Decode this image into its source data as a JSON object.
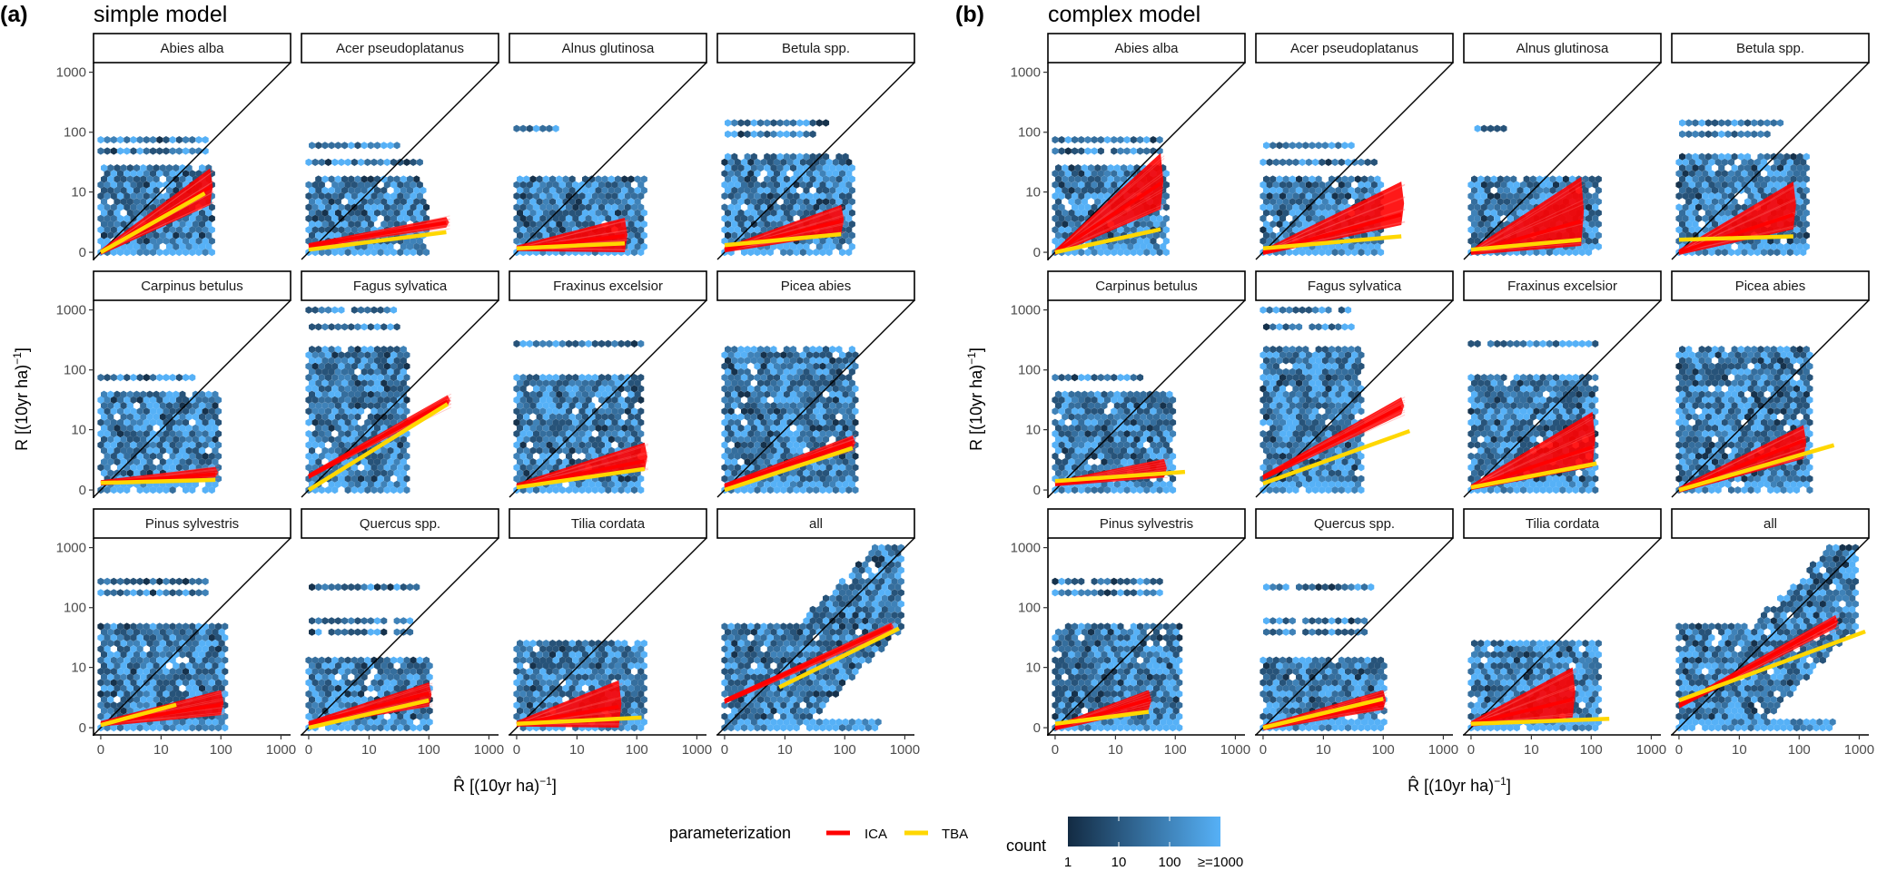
{
  "panels": {
    "a": {
      "tag": "(a)",
      "title": "simple model"
    },
    "b": {
      "tag": "(b)",
      "title": "complex model"
    }
  },
  "axes": {
    "ylabel": {
      "main": "R [(10yr ha)",
      "sup": "−1",
      "end": "]"
    },
    "xlabel": {
      "main": "R̂ [(10yr ha)",
      "sup": "−1",
      "end": "]"
    },
    "ticks": [
      "0",
      "10",
      "100",
      "1000"
    ],
    "tick_values": [
      0,
      10,
      100,
      1000
    ],
    "scale": "pseudo-log",
    "range": [
      0,
      1400
    ]
  },
  "legend": {
    "title": "parameterization",
    "items": [
      {
        "label": "ICA",
        "color": "#FF0000"
      },
      {
        "label": "TBA",
        "color": "#FFD700"
      }
    ],
    "count": {
      "title": "count",
      "labels": [
        "1",
        "10",
        "100",
        "≥=1000"
      ],
      "low_color": "#132B43",
      "high_color": "#56B1F7"
    }
  },
  "colors": {
    "ica": "#FF0000",
    "tba": "#FFD700",
    "identity": "#000000"
  },
  "chart_data": [
    {
      "type": "hexbin+line",
      "title": "simple model",
      "panels": [
        {
          "species": "Abies alba",
          "hex": {
            "xmax": 74,
            "ymax": 30,
            "rows": [
              [
                50,
                60
              ],
              [
                80,
                70
              ]
            ]
          },
          "ica": {
            "from": [
              0,
              0
            ],
            "to": [
              66,
              12
            ],
            "to_range": [
              6,
              25
            ]
          },
          "tba": {
            "from": [
              0,
              0
            ],
            "to": [
              54,
              9.5
            ]
          }
        },
        {
          "species": "Acer pseudoplatanus",
          "hex": {
            "xmax": 91,
            "ymax": 20,
            "rows": [
              [
                30,
                80
              ],
              [
                55,
                30
              ]
            ]
          },
          "ica": {
            "from": [
              0,
              0.5
            ],
            "to": [
              195,
              2.8
            ],
            "to_range": [
              2.2,
              3.6
            ]
          },
          "tba": {
            "from": [
              0,
              0.2
            ],
            "to": [
              195,
              1.7
            ]
          }
        },
        {
          "species": "Alnus glutinosa",
          "hex": {
            "xmax": 135,
            "ymax": 20,
            "rows": [
              [
                120,
                5
              ]
            ]
          },
          "ica": {
            "from": [
              0,
              0.3
            ],
            "to": [
              63,
              1.35
            ],
            "to_range": [
              0,
              3.5
            ]
          },
          "tba": {
            "from": [
              0,
              0.3
            ],
            "to": [
              63,
              0.7
            ]
          }
        },
        {
          "species": "Betula spp.",
          "hex": {
            "xmax": 135,
            "ymax": 40,
            "rows": [
              [
                100,
                30
              ],
              [
                140,
                60
              ]
            ]
          },
          "ica": {
            "from": [
              0,
              0.2
            ],
            "to": [
              87,
              3
            ],
            "to_range": [
              1.5,
              6
            ]
          },
          "tba": {
            "from": [
              0,
              0.55
            ],
            "to": [
              87,
              1.5
            ]
          }
        },
        {
          "species": "Carpinus betulus",
          "hex": {
            "xmax": 102,
            "ymax": 45,
            "rows": [
              [
                80,
                40
              ]
            ]
          },
          "ica": {
            "from": [
              0,
              0.55
            ],
            "to": [
              81,
              1.3
            ],
            "to_range": [
              1,
              2
            ]
          },
          "tba": {
            "from": [
              0,
              0.55
            ],
            "to": [
              81,
              0.8
            ]
          }
        },
        {
          "species": "Fagus sylvatica",
          "hex": {
            "xmax": 43,
            "ymax": 250,
            "rows": [
              [
                550,
                30
              ],
              [
                1000,
                30
              ]
            ]
          },
          "ica": {
            "from": [
              0,
              1.1
            ],
            "to": [
              205,
              30
            ],
            "to_range": [
              25,
              38
            ]
          },
          "tba": {
            "from": [
              0,
              0
            ],
            "to": [
              205,
              27
            ]
          }
        },
        {
          "species": "Fraxinus excelsior",
          "hex": {
            "xmax": 120,
            "ymax": 80,
            "rows": [
              [
                250,
                130
              ]
            ]
          },
          "ica": {
            "from": [
              0,
              0.3
            ],
            "to": [
              135,
              2.7
            ],
            "to_range": [
              1.6,
              6
            ]
          },
          "tba": {
            "from": [
              0,
              0.2
            ],
            "to": [
              135,
              1.8
            ]
          }
        },
        {
          "species": "Picea abies",
          "hex": {
            "xmax": 165,
            "ymax": 250,
            "rows": []
          },
          "ica": {
            "from": [
              0,
              0.3
            ],
            "to": [
              135,
              6
            ],
            "to_range": [
              4.5,
              8
            ]
          },
          "tba": {
            "from": [
              0,
              0
            ],
            "to": [
              135,
              4.8
            ]
          }
        },
        {
          "species": "Pinus sylvestris",
          "hex": {
            "xmax": 123,
            "ymax": 55,
            "rows": [
              [
                170,
                60
              ],
              [
                250,
                70
              ]
            ]
          },
          "ica": {
            "from": [
              0,
              0.3
            ],
            "to": [
              100,
              2
            ],
            "to_range": [
              1,
              4
            ]
          },
          "tba": {
            "from": [
              0,
              0.2
            ],
            "to": [
              18,
              2
            ]
          }
        },
        {
          "species": "Quercus spp.",
          "hex": {
            "xmax": 112,
            "ymax": 15,
            "rows": [
              [
                40,
                60
              ],
              [
                60,
                50
              ],
              [
                200,
                80
              ]
            ]
          },
          "ica": {
            "from": [
              0,
              0.3
            ],
            "to": [
              100,
              3.5
            ],
            "to_range": [
              1.8,
              5.5
            ]
          },
          "tba": {
            "from": [
              0,
              0
            ],
            "to": [
              100,
              2.5
            ]
          }
        },
        {
          "species": "Tilia cordata",
          "hex": {
            "xmax": 138,
            "ymax": 30,
            "rows": []
          },
          "ica": {
            "from": [
              0,
              0.3
            ],
            "to": [
              50,
              1.8
            ],
            "to_range": [
              0,
              6
            ]
          },
          "tba": {
            "from": [
              0,
              0.3
            ],
            "to": [
              120,
              0.8
            ]
          }
        },
        {
          "species": "all",
          "hex": {
            "xmax": 1000,
            "ymax": 1000,
            "rows": [],
            "shape": "diagonal"
          },
          "ica": {
            "from": [
              0,
              2.4
            ],
            "to": [
              590,
              48
            ],
            "to_range": [
              40,
              56
            ]
          },
          "tba": {
            "from": [
              8,
              4.5
            ],
            "to": [
              800,
              45
            ]
          }
        }
      ]
    },
    {
      "type": "hexbin+line",
      "title": "complex model",
      "panels": [
        {
          "species": "Abies alba",
          "hex": {
            "xmax": 74,
            "ymax": 30,
            "rows": [
              [
                50,
                60
              ],
              [
                80,
                70
              ]
            ]
          },
          "ica": {
            "from": [
              0,
              0
            ],
            "to": [
              57,
              14
            ],
            "to_range": [
              5,
              45
            ]
          },
          "tba": {
            "from": [
              0,
              0
            ],
            "to": [
              57,
              2
            ]
          }
        },
        {
          "species": "Acer pseudoplatanus",
          "hex": {
            "xmax": 91,
            "ymax": 20,
            "rows": [
              [
                30,
                80
              ],
              [
                55,
                30
              ]
            ]
          },
          "ica": {
            "from": [
              0,
              0
            ],
            "to": [
              200,
              4
            ],
            "to_range": [
              2.5,
              15
            ]
          },
          "tba": {
            "from": [
              0,
              0.3
            ],
            "to": [
              200,
              1.3
            ]
          }
        },
        {
          "species": "Alnus glutinosa",
          "hex": {
            "xmax": 135,
            "ymax": 20,
            "rows": [
              [
                120,
                5
              ]
            ]
          },
          "ica": {
            "from": [
              0,
              0
            ],
            "to": [
              68,
              3
            ],
            "to_range": [
              0.5,
              18
            ]
          },
          "tba": {
            "from": [
              0,
              0.2
            ],
            "to": [
              68,
              1
            ]
          }
        },
        {
          "species": "Betula spp.",
          "hex": {
            "xmax": 135,
            "ymax": 40,
            "rows": [
              [
                100,
                30
              ],
              [
                140,
                60
              ]
            ]
          },
          "ica": {
            "from": [
              0,
              0
            ],
            "to": [
              80,
              4
            ],
            "to_range": [
              2,
              15
            ]
          },
          "tba": {
            "from": [
              0,
              1
            ],
            "to": [
              80,
              1.3
            ]
          }
        },
        {
          "species": "Carpinus betulus",
          "hex": {
            "xmax": 102,
            "ymax": 45,
            "rows": [
              [
                80,
                40
              ]
            ]
          },
          "ica": {
            "from": [
              0,
              0.5
            ],
            "to": [
              65,
              1.35
            ],
            "to_range": [
              1,
              3
            ]
          },
          "tba": {
            "from": [
              0,
              0.7
            ],
            "to": [
              145,
              1.5
            ]
          }
        },
        {
          "species": "Fagus sylvatica",
          "hex": {
            "xmax": 43,
            "ymax": 250,
            "rows": [
              [
                550,
                30
              ],
              [
                1000,
                30
              ]
            ]
          },
          "ica": {
            "from": [
              0,
              1
            ],
            "to": [
              200,
              24
            ],
            "to_range": [
              18,
              35
            ]
          },
          "tba": {
            "from": [
              0,
              0.5
            ],
            "to": [
              275,
              9.5
            ]
          }
        },
        {
          "species": "Fraxinus excelsior",
          "hex": {
            "xmax": 120,
            "ymax": 80,
            "rows": [
              [
                250,
                130
              ]
            ]
          },
          "ica": {
            "from": [
              0,
              0.2
            ],
            "to": [
              105,
              5
            ],
            "to_range": [
              2,
              20
            ]
          },
          "tba": {
            "from": [
              0,
              0.2
            ],
            "to": [
              123,
              2.4
            ]
          }
        },
        {
          "species": "Picea abies",
          "hex": {
            "xmax": 165,
            "ymax": 250,
            "rows": []
          },
          "ica": {
            "from": [
              0,
              0
            ],
            "to": [
              118,
              6.5
            ],
            "to_range": [
              3,
              12
            ]
          },
          "tba": {
            "from": [
              0,
              0
            ],
            "to": [
              380,
              5.4
            ]
          }
        },
        {
          "species": "Pinus sylvestris",
          "hex": {
            "xmax": 123,
            "ymax": 55,
            "rows": [
              [
                170,
                60
              ],
              [
                250,
                70
              ]
            ]
          },
          "ica": {
            "from": [
              0,
              0
            ],
            "to": [
              36,
              2.6
            ],
            "to_range": [
              1.5,
              4
            ]
          },
          "tba": {
            "from": [
              0,
              0.3
            ],
            "to": [
              36,
              1.3
            ]
          }
        },
        {
          "species": "Quercus spp.",
          "hex": {
            "xmax": 112,
            "ymax": 15,
            "rows": [
              [
                40,
                60
              ],
              [
                60,
                50
              ],
              [
                200,
                80
              ]
            ]
          },
          "ica": {
            "from": [
              0,
              0
            ],
            "to": [
              100,
              2.2
            ],
            "to_range": [
              1.5,
              4
            ]
          },
          "tba": {
            "from": [
              0,
              0
            ],
            "to": [
              100,
              2.7
            ]
          }
        },
        {
          "species": "Tilia cordata",
          "hex": {
            "xmax": 138,
            "ymax": 30,
            "rows": []
          },
          "ica": {
            "from": [
              0,
              0.3
            ],
            "to": [
              49,
              2.6
            ],
            "to_range": [
              0.8,
              10
            ]
          },
          "tba": {
            "from": [
              0,
              0.3
            ],
            "to": [
              200,
              0.7
            ]
          }
        },
        {
          "species": "all",
          "hex": {
            "xmax": 1000,
            "ymax": 1000,
            "rows": [],
            "shape": "diagonal"
          },
          "ica": {
            "from": [
              0,
              1.9
            ],
            "to": [
              400,
              60
            ],
            "to_range": [
              45,
              75
            ]
          },
          "tba": {
            "from": [
              0,
              2.5
            ],
            "to": [
              1260,
              40
            ]
          }
        }
      ]
    }
  ]
}
